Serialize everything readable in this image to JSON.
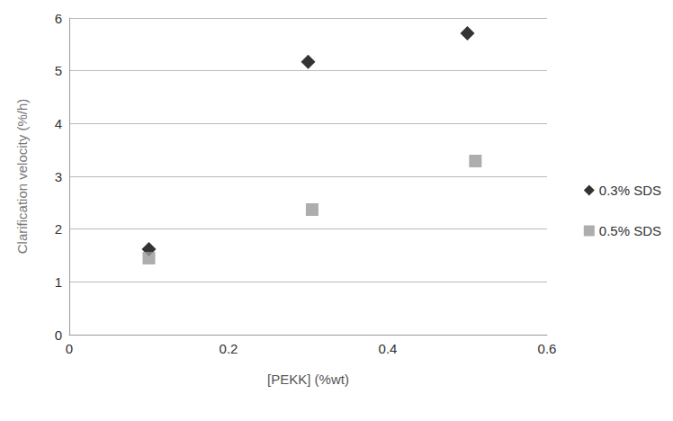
{
  "chart_data": {
    "type": "scatter",
    "x_label": "[PEKK] (%wt)",
    "y_label": "Clarification velocity (%/h)",
    "series": [
      {
        "name": "0.3% SDS",
        "color": "#000000",
        "marker": "diamond",
        "x": [
          0.1,
          0.3,
          0.5
        ],
        "values": [
          1.62,
          5.17,
          5.71
        ]
      },
      {
        "name": "0.5% SDS",
        "color": "#999999",
        "marker": "square",
        "x": [
          0.1,
          0.305,
          0.51
        ],
        "values": [
          1.45,
          2.37,
          3.29
        ]
      }
    ],
    "xlim": [
      0,
      0.6
    ],
    "xticks": [
      0,
      0.2,
      0.4,
      0.6
    ],
    "ylim": [
      0,
      6
    ],
    "yticks": [
      0,
      1,
      2,
      3,
      4,
      5,
      6
    ],
    "grid": true,
    "legend": "right"
  }
}
